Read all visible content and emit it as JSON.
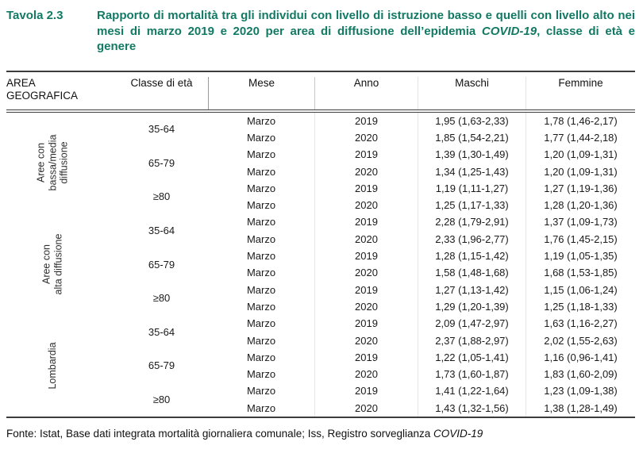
{
  "title": {
    "prefix": "Tavola 2.3",
    "main": "Rapporto di mortalità tra gli individui con livello di istruzione basso e quelli con livello alto nei mesi di marzo 2019 e 2020 per area di diffusione dell’epidemia ",
    "italic": "COVID-19",
    "suffix": ", classe di età e genere"
  },
  "header": {
    "area": "AREA\nGEOGRAFICA",
    "classe": "Classe di età",
    "mese": "Mese",
    "anno": "Anno",
    "maschi": "Maschi",
    "femmine": "Femmine"
  },
  "table": {
    "groups": [
      {
        "area": "Aree con\nbassa/media\ndiffusione",
        "ages": [
          {
            "classe": "35-64",
            "rows": [
              {
                "mese": "Marzo",
                "anno": "2019",
                "maschi": "1,95 (1,63-2,33)",
                "femmine": "1,78 (1,46-2,17)"
              },
              {
                "mese": "Marzo",
                "anno": "2020",
                "maschi": "1,85 (1,54-2,21)",
                "femmine": "1,77 (1,44-2,18)"
              }
            ]
          },
          {
            "classe": "65-79",
            "rows": [
              {
                "mese": "Marzo",
                "anno": "2019",
                "maschi": "1,39 (1,30-1,49)",
                "femmine": "1,20 (1,09-1,31)"
              },
              {
                "mese": "Marzo",
                "anno": "2020",
                "maschi": "1,34 (1,25-1,43)",
                "femmine": "1,20 (1,09-1,31)"
              }
            ]
          },
          {
            "classe": "≥80",
            "rows": [
              {
                "mese": "Marzo",
                "anno": "2019",
                "maschi": "1,19 (1,11-1,27)",
                "femmine": "1,27 (1,19-1,36)"
              },
              {
                "mese": "Marzo",
                "anno": "2020",
                "maschi": "1,25 (1,17-1,33)",
                "femmine": "1,28 (1,20-1,36)"
              }
            ]
          }
        ]
      },
      {
        "area": "Aree con\nalta diffusione",
        "ages": [
          {
            "classe": "35-64",
            "rows": [
              {
                "mese": "Marzo",
                "anno": "2019",
                "maschi": "2,28 (1,79-2,91)",
                "femmine": "1,37 (1,09-1,73)"
              },
              {
                "mese": "Marzo",
                "anno": "2020",
                "maschi": "2,33 (1,96-2,77)",
                "femmine": "1,76 (1,45-2,15)"
              }
            ]
          },
          {
            "classe": "65-79",
            "rows": [
              {
                "mese": "Marzo",
                "anno": "2019",
                "maschi": "1,28 (1,15-1,42)",
                "femmine": "1,19 (1,05-1,35)"
              },
              {
                "mese": "Marzo",
                "anno": "2020",
                "maschi": "1,58 (1,48-1,68)",
                "femmine": "1,68 (1,53-1,85)"
              }
            ]
          },
          {
            "classe": "≥80",
            "rows": [
              {
                "mese": "Marzo",
                "anno": "2019",
                "maschi": "1,27 (1,13-1,42)",
                "femmine": "1,15 (1,06-1,24)"
              },
              {
                "mese": "Marzo",
                "anno": "2020",
                "maschi": "1,29 (1,20-1,39)",
                "femmine": "1,25 (1,18-1,33)"
              }
            ]
          }
        ]
      },
      {
        "area": "Lombardia",
        "ages": [
          {
            "classe": "35-64",
            "rows": [
              {
                "mese": "Marzo",
                "anno": "2019",
                "maschi": "2,09 (1,47-2,97)",
                "femmine": "1,63 (1,16-2,27)"
              },
              {
                "mese": "Marzo",
                "anno": "2020",
                "maschi": "2,37 (1,88-2,97)",
                "femmine": "2,02 (1,55-2,63)"
              }
            ]
          },
          {
            "classe": "65-79",
            "rows": [
              {
                "mese": "Marzo",
                "anno": "2019",
                "maschi": "1,22 (1,05-1,41)",
                "femmine": "1,16 (0,96-1,41)"
              },
              {
                "mese": "Marzo",
                "anno": "2020",
                "maschi": "1,73 (1,60-1,87)",
                "femmine": "1,83 (1,60-2,09)"
              }
            ]
          },
          {
            "classe": "≥80",
            "rows": [
              {
                "mese": "Marzo",
                "anno": "2019",
                "maschi": "1,41 (1,22-1,64)",
                "femmine": "1,23 (1,09-1,38)"
              },
              {
                "mese": "Marzo",
                "anno": "2020",
                "maschi": "1,43 (1,32-1,56)",
                "femmine": "1,38 (1,28-1,49)"
              }
            ]
          }
        ]
      }
    ]
  },
  "footer": {
    "text": "Fonte: Istat, Base dati integrata mortalità giornaliera comunale; Iss, Registro sorveglianza ",
    "italic": "COVID-19"
  },
  "colors": {
    "title_teal": "#127A64",
    "rule_dark": "#3C3C3C",
    "divider_light": "#E6E6E6",
    "body_text": "#1A1A1A"
  }
}
